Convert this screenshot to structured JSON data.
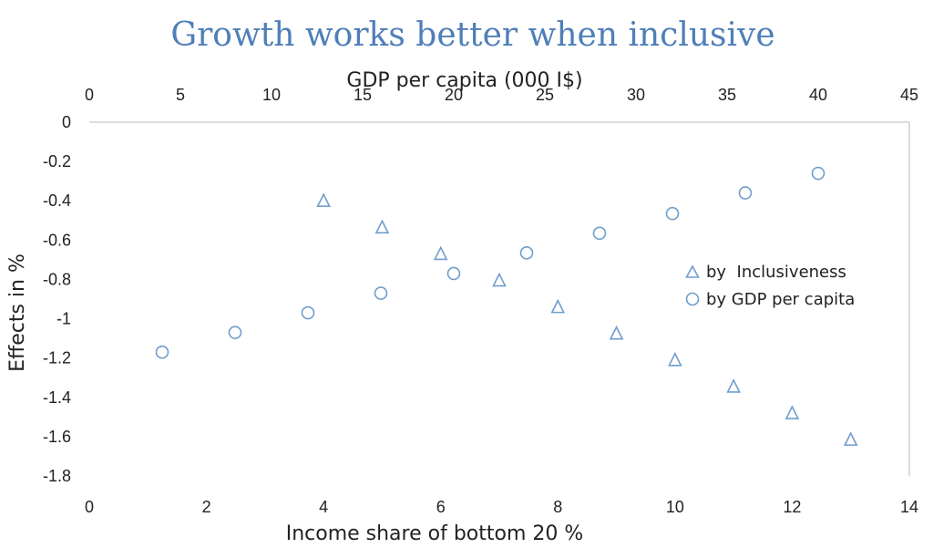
{
  "chart_data": {
    "type": "scatter",
    "title": "Growth works better when inclusive",
    "x_top": {
      "label": "GDP per capita (000 I$)",
      "range": [
        0,
        45
      ],
      "ticks": [
        0,
        5,
        10,
        15,
        20,
        25,
        30,
        35,
        40,
        45
      ]
    },
    "x_bottom": {
      "label": "Income share of bottom 20 %",
      "range": [
        0,
        14
      ],
      "ticks": [
        0,
        2,
        4,
        6,
        8,
        10,
        12,
        14
      ]
    },
    "y": {
      "label": "Effects in %",
      "range": [
        -1.8,
        0
      ],
      "ticks": [
        0,
        -0.2,
        -0.4,
        -0.6,
        -0.8,
        -1,
        -1.2,
        -1.4,
        -1.6,
        -1.8
      ]
    },
    "legend_position": "right",
    "series": [
      {
        "name": "by  Inclusiveness",
        "marker": "triangle",
        "axis": "bottom",
        "color": "#6f9dcc",
        "x": [
          4,
          5,
          6,
          7,
          8,
          9,
          10,
          11,
          12,
          13
        ],
        "y": [
          -0.4,
          -0.535,
          -0.67,
          -0.805,
          -0.94,
          -1.075,
          -1.21,
          -1.345,
          -1.48,
          -1.615
        ]
      },
      {
        "name": "by GDP per capita",
        "marker": "circle",
        "axis": "top",
        "color": "#6f9dcc",
        "x": [
          4,
          8,
          12,
          16,
          20,
          24,
          28,
          32,
          36,
          40
        ],
        "y": [
          -1.17,
          -1.07,
          -0.97,
          -0.87,
          -0.77,
          -0.665,
          -0.565,
          -0.465,
          -0.36,
          -0.26
        ]
      }
    ]
  }
}
